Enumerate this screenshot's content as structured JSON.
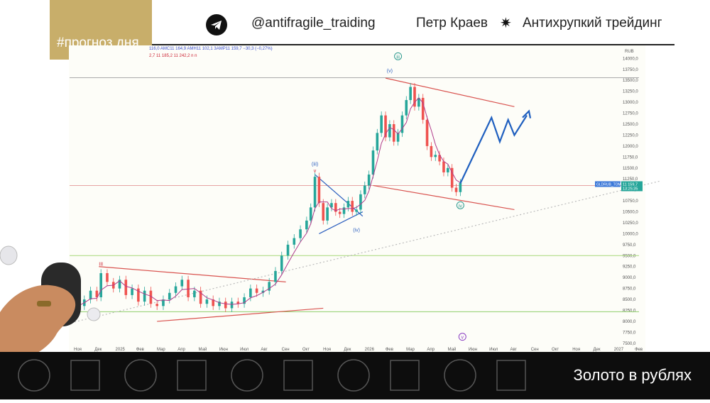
{
  "header": {
    "tag": "#прогноз дня",
    "handle": "@antifragile_traiding",
    "author": "Петр Краев",
    "separator": "✷",
    "channel": "Антихрупкий трейдинг"
  },
  "legend": {
    "line1": "116,0  AMC11 164,9  AMH11 102,1  3AMP11 159,7 −30,3 (−0,27%)",
    "line2": "2,7  11 185,2  11 242,2  n  n"
  },
  "footer": {
    "title": "Золото в рублях"
  },
  "colors": {
    "gold": "#c8ae6a",
    "up": "#26a69a",
    "down": "#ef5350",
    "trend": "#d9534f",
    "forecast": "#1f5fbf",
    "wave": "#2e9a8f"
  },
  "chart_data": {
    "type": "candlestick",
    "x_ticks": [
      "Ноя",
      "Дек",
      "2025",
      "Фев",
      "Мар",
      "Апр",
      "Май",
      "Июн",
      "Июл",
      "Авг",
      "Сен",
      "Окт",
      "Ноя",
      "Дек",
      "2026",
      "Фев",
      "Мар",
      "Апр",
      "Май",
      "Июн",
      "Июл",
      "Авг",
      "Сен",
      "Окт",
      "Ноя",
      "Дек",
      "2027",
      "Фев"
    ],
    "y_unit": "RUB",
    "y_ticks": [
      7500,
      7750,
      8000,
      8250,
      8500,
      8750,
      9000,
      9250,
      9500,
      9750,
      10000,
      10250,
      10500,
      10750,
      11000,
      11250,
      11500,
      11750,
      12000,
      12250,
      12500,
      12750,
      13000,
      13250,
      13500,
      13750,
      14000
    ],
    "y_tick_labels": [
      "7500,0",
      "7750,0",
      "8000,0",
      "8250,0",
      "8500,0",
      "8750,0",
      "9000,0",
      "9250,0",
      "9500,0",
      "9750,0",
      "10000,0",
      "10250,0",
      "10500,0",
      "10750,0",
      "11000,0",
      "11250,0",
      "11500,0",
      "11750,0",
      "12000,0",
      "12250,0",
      "12500,0",
      "12750,0",
      "13000,0",
      "13250,0",
      "13500,0",
      "13750,0",
      "14000,0"
    ],
    "ylim": [
      7400,
      14200
    ],
    "price_series": [
      {
        "x": 0,
        "v": 8350
      },
      {
        "x": 0.3,
        "v": 8500
      },
      {
        "x": 0.6,
        "v": 8700
      },
      {
        "x": 0.9,
        "v": 8550
      },
      {
        "x": 1.1,
        "v": 9100
      },
      {
        "x": 1.4,
        "v": 8900
      },
      {
        "x": 1.7,
        "v": 8750
      },
      {
        "x": 2.0,
        "v": 8950
      },
      {
        "x": 2.3,
        "v": 8600
      },
      {
        "x": 2.6,
        "v": 8750
      },
      {
        "x": 2.9,
        "v": 8450
      },
      {
        "x": 3.2,
        "v": 8700
      },
      {
        "x": 3.5,
        "v": 8400
      },
      {
        "x": 3.8,
        "v": 8350
      },
      {
        "x": 4.1,
        "v": 8500
      },
      {
        "x": 4.4,
        "v": 8650
      },
      {
        "x": 4.7,
        "v": 8800
      },
      {
        "x": 5.0,
        "v": 8950
      },
      {
        "x": 5.3,
        "v": 8550
      },
      {
        "x": 5.6,
        "v": 8700
      },
      {
        "x": 5.9,
        "v": 8400
      },
      {
        "x": 6.2,
        "v": 8500
      },
      {
        "x": 6.5,
        "v": 8350
      },
      {
        "x": 6.8,
        "v": 8450
      },
      {
        "x": 7.1,
        "v": 8300
      },
      {
        "x": 7.4,
        "v": 8450
      },
      {
        "x": 7.7,
        "v": 8400
      },
      {
        "x": 8.0,
        "v": 8550
      },
      {
        "x": 8.3,
        "v": 8750
      },
      {
        "x": 8.6,
        "v": 8650
      },
      {
        "x": 8.9,
        "v": 8700
      },
      {
        "x": 9.2,
        "v": 8900
      },
      {
        "x": 9.5,
        "v": 9150
      },
      {
        "x": 9.8,
        "v": 9500
      },
      {
        "x": 10.1,
        "v": 9750
      },
      {
        "x": 10.4,
        "v": 9900
      },
      {
        "x": 10.7,
        "v": 10100
      },
      {
        "x": 11.0,
        "v": 10300
      },
      {
        "x": 11.2,
        "v": 10600
      },
      {
        "x": 11.4,
        "v": 11300
      },
      {
        "x": 11.6,
        "v": 10700
      },
      {
        "x": 11.8,
        "v": 10300
      },
      {
        "x": 12.0,
        "v": 10600
      },
      {
        "x": 12.2,
        "v": 10700
      },
      {
        "x": 12.4,
        "v": 10500
      },
      {
        "x": 12.6,
        "v": 10450
      },
      {
        "x": 12.8,
        "v": 10600
      },
      {
        "x": 13.0,
        "v": 10750
      },
      {
        "x": 13.2,
        "v": 10500
      },
      {
        "x": 13.4,
        "v": 10550
      },
      {
        "x": 13.6,
        "v": 10900
      },
      {
        "x": 13.8,
        "v": 11100
      },
      {
        "x": 14.0,
        "v": 11350
      },
      {
        "x": 14.2,
        "v": 11900
      },
      {
        "x": 14.4,
        "v": 12300
      },
      {
        "x": 14.6,
        "v": 12700
      },
      {
        "x": 14.8,
        "v": 12200
      },
      {
        "x": 15.0,
        "v": 12500
      },
      {
        "x": 15.2,
        "v": 12100
      },
      {
        "x": 15.4,
        "v": 12300
      },
      {
        "x": 15.6,
        "v": 12700
      },
      {
        "x": 15.8,
        "v": 13050
      },
      {
        "x": 16.0,
        "v": 13350
      },
      {
        "x": 16.2,
        "v": 12900
      },
      {
        "x": 16.4,
        "v": 13100
      },
      {
        "x": 16.6,
        "v": 12600
      },
      {
        "x": 16.8,
        "v": 12000
      },
      {
        "x": 17.0,
        "v": 11750
      },
      {
        "x": 17.2,
        "v": 11800
      },
      {
        "x": 17.4,
        "v": 11650
      },
      {
        "x": 17.6,
        "v": 11400
      },
      {
        "x": 17.8,
        "v": 11500
      },
      {
        "x": 18.0,
        "v": 11050
      },
      {
        "x": 18.2,
        "v": 10950
      },
      {
        "x": 18.4,
        "v": 11159.7
      }
    ],
    "last_price": {
      "label": "GLDRUB_TOM",
      "value": "11 159,7",
      "time": "13:25:35"
    },
    "horizontal_levels": [
      {
        "value": 13560,
        "color": "#aaaaaa"
      },
      {
        "value": 11100,
        "color": "#e7a3a3"
      },
      {
        "value": 9500,
        "color": "#a8d87a"
      },
      {
        "value": 8220,
        "color": "#8fcf6a"
      }
    ],
    "trend_lines": [
      {
        "name": "upper-wedge-2025",
        "from": {
          "x": 1.0,
          "v": 9250
        },
        "to": {
          "x": 10.0,
          "v": 8900
        },
        "color": "#d9534f"
      },
      {
        "name": "lower-wedge-2025",
        "from": {
          "x": 3.8,
          "v": 8000
        },
        "to": {
          "x": 11.8,
          "v": 8300
        },
        "color": "#d9534f"
      },
      {
        "name": "upper-channel-2026",
        "from": {
          "x": 14.8,
          "v": 13550
        },
        "to": {
          "x": 21.0,
          "v": 12900
        },
        "color": "#d9534f"
      },
      {
        "name": "lower-channel-2026",
        "from": {
          "x": 14.2,
          "v": 11100
        },
        "to": {
          "x": 21.0,
          "v": 10550
        },
        "color": "#d9534f"
      },
      {
        "name": "triangle-upper",
        "from": {
          "x": 11.4,
          "v": 11350
        },
        "to": {
          "x": 13.7,
          "v": 10400
        },
        "color": "#2c5fbf"
      },
      {
        "name": "triangle-lower",
        "from": {
          "x": 11.6,
          "v": 10000
        },
        "to": {
          "x": 13.7,
          "v": 10500
        },
        "color": "#2c5fbf"
      },
      {
        "name": "long-term-support",
        "from": {
          "x": -0.5,
          "v": 7950
        },
        "to": {
          "x": 28.0,
          "v": 11200
        },
        "color": "#bbbbbb",
        "dashed": true
      }
    ],
    "forecast_path": [
      {
        "x": 18.4,
        "v": 11150
      },
      {
        "x": 19.2,
        "v": 11950
      },
      {
        "x": 19.9,
        "v": 12650
      },
      {
        "x": 20.3,
        "v": 12100
      },
      {
        "x": 20.7,
        "v": 12600
      },
      {
        "x": 21.0,
        "v": 12250
      },
      {
        "x": 21.6,
        "v": 12700
      }
    ],
    "wave_labels": [
      {
        "text": "III",
        "x": 1.1,
        "v": 9270,
        "color": "#c23"
      },
      {
        "text": "(iii)",
        "x": 11.4,
        "v": 11550,
        "color": "#2c5fbf"
      },
      {
        "text": "v",
        "x": 11.4,
        "v": 11400,
        "color": "#c23"
      },
      {
        "text": "(iv)",
        "x": 13.4,
        "v": 10050,
        "color": "#2c5fbf"
      },
      {
        "text": "(v)",
        "x": 15.0,
        "v": 13680,
        "color": "#2c5fbf"
      },
      {
        "text": "iii",
        "x": 15.4,
        "v": 14000,
        "color": "#2e9a8f",
        "circled": true
      },
      {
        "text": "iv",
        "x": 18.4,
        "v": 10600,
        "color": "#2e9a8f",
        "circled": true
      },
      {
        "text": "v",
        "x": 18.5,
        "v": 7600,
        "color": "#8a3cc2",
        "circled": true
      }
    ]
  }
}
